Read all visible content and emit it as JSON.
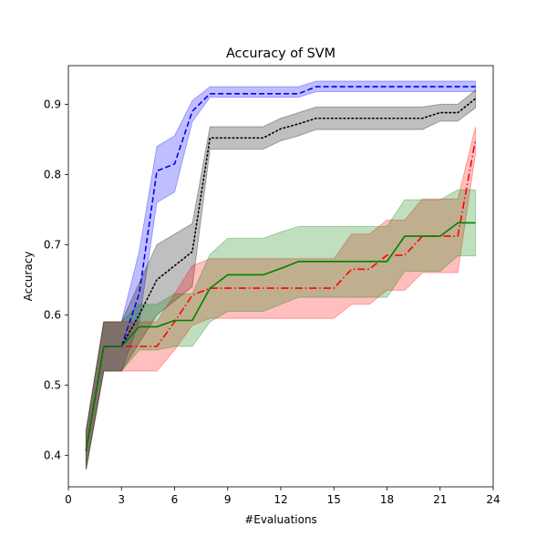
{
  "chart_data": {
    "type": "line",
    "title": "Accuracy of SVM",
    "xlabel": "#Evaluations",
    "ylabel": "Accuracy",
    "xlim": [
      0,
      24
    ],
    "ylim": [
      0.355,
      0.955
    ],
    "xticks": [
      0,
      3,
      6,
      9,
      12,
      15,
      18,
      21,
      24
    ],
    "yticks": [
      0.4,
      0.5,
      0.6,
      0.7,
      0.8,
      0.9
    ],
    "grid": false,
    "legend": false,
    "series": [
      {
        "color": "#0000ff",
        "linestyle": "dashed",
        "x": [
          1,
          2,
          3,
          4,
          5,
          6,
          7,
          8,
          9,
          10,
          11,
          12,
          13,
          14,
          15,
          16,
          17,
          18,
          19,
          20,
          21,
          22,
          23
        ],
        "y": [
          0.407,
          0.555,
          0.555,
          0.63,
          0.805,
          0.815,
          0.89,
          0.915,
          0.915,
          0.915,
          0.915,
          0.915,
          0.915,
          0.925,
          0.925,
          0.925,
          0.925,
          0.925,
          0.925,
          0.925,
          0.925,
          0.925,
          0.925
        ],
        "lower": [
          0.38,
          0.52,
          0.52,
          0.59,
          0.76,
          0.775,
          0.875,
          0.91,
          0.91,
          0.91,
          0.91,
          0.91,
          0.91,
          0.918,
          0.918,
          0.918,
          0.918,
          0.918,
          0.918,
          0.918,
          0.918,
          0.918,
          0.918
        ],
        "upper": [
          0.435,
          0.59,
          0.59,
          0.69,
          0.84,
          0.855,
          0.905,
          0.925,
          0.925,
          0.925,
          0.925,
          0.925,
          0.925,
          0.933,
          0.933,
          0.933,
          0.933,
          0.933,
          0.933,
          0.933,
          0.933,
          0.933,
          0.933
        ]
      },
      {
        "color": "#000000",
        "linestyle": "dotted",
        "x": [
          1,
          2,
          3,
          4,
          5,
          6,
          7,
          8,
          9,
          10,
          11,
          12,
          13,
          14,
          15,
          16,
          17,
          18,
          19,
          20,
          21,
          22,
          23
        ],
        "y": [
          0.407,
          0.555,
          0.555,
          0.6,
          0.65,
          0.67,
          0.69,
          0.852,
          0.852,
          0.852,
          0.852,
          0.865,
          0.872,
          0.88,
          0.88,
          0.88,
          0.88,
          0.88,
          0.88,
          0.88,
          0.888,
          0.888,
          0.908
        ],
        "lower": [
          0.38,
          0.52,
          0.52,
          0.56,
          0.6,
          0.62,
          0.64,
          0.836,
          0.836,
          0.836,
          0.836,
          0.848,
          0.855,
          0.864,
          0.864,
          0.864,
          0.864,
          0.864,
          0.864,
          0.864,
          0.876,
          0.876,
          0.895
        ],
        "upper": [
          0.435,
          0.59,
          0.59,
          0.645,
          0.7,
          0.715,
          0.73,
          0.868,
          0.868,
          0.868,
          0.868,
          0.88,
          0.888,
          0.896,
          0.896,
          0.896,
          0.896,
          0.896,
          0.896,
          0.896,
          0.9,
          0.9,
          0.92
        ]
      },
      {
        "color": "#ff0000",
        "linestyle": "dashdot",
        "x": [
          1,
          2,
          3,
          4,
          5,
          6,
          7,
          8,
          9,
          10,
          11,
          12,
          13,
          14,
          15,
          16,
          17,
          18,
          19,
          20,
          21,
          22,
          23
        ],
        "y": [
          0.407,
          0.555,
          0.555,
          0.555,
          0.555,
          0.59,
          0.628,
          0.638,
          0.638,
          0.638,
          0.638,
          0.638,
          0.638,
          0.638,
          0.638,
          0.665,
          0.665,
          0.685,
          0.685,
          0.712,
          0.712,
          0.712,
          0.85
        ],
        "lower": [
          0.38,
          0.52,
          0.52,
          0.52,
          0.52,
          0.55,
          0.585,
          0.595,
          0.595,
          0.595,
          0.595,
          0.595,
          0.595,
          0.595,
          0.595,
          0.615,
          0.615,
          0.635,
          0.635,
          0.66,
          0.66,
          0.66,
          0.83
        ],
        "upper": [
          0.435,
          0.59,
          0.59,
          0.59,
          0.59,
          0.63,
          0.67,
          0.68,
          0.68,
          0.68,
          0.68,
          0.68,
          0.68,
          0.68,
          0.68,
          0.715,
          0.715,
          0.735,
          0.735,
          0.765,
          0.765,
          0.765,
          0.868
        ]
      },
      {
        "color": "#008000",
        "linestyle": "solid",
        "x": [
          1,
          2,
          3,
          4,
          5,
          6,
          7,
          8,
          9,
          10,
          11,
          12,
          13,
          14,
          15,
          16,
          17,
          18,
          19,
          20,
          21,
          22,
          23
        ],
        "y": [
          0.407,
          0.555,
          0.555,
          0.583,
          0.583,
          0.592,
          0.592,
          0.638,
          0.657,
          0.657,
          0.657,
          0.666,
          0.676,
          0.676,
          0.676,
          0.676,
          0.676,
          0.676,
          0.712,
          0.712,
          0.712,
          0.731,
          0.731
        ],
        "lower": [
          0.38,
          0.52,
          0.52,
          0.55,
          0.55,
          0.555,
          0.555,
          0.59,
          0.605,
          0.605,
          0.605,
          0.615,
          0.625,
          0.625,
          0.625,
          0.625,
          0.625,
          0.625,
          0.662,
          0.662,
          0.662,
          0.684,
          0.684
        ],
        "upper": [
          0.435,
          0.59,
          0.59,
          0.615,
          0.615,
          0.63,
          0.63,
          0.686,
          0.709,
          0.709,
          0.709,
          0.718,
          0.726,
          0.726,
          0.726,
          0.726,
          0.726,
          0.726,
          0.764,
          0.764,
          0.764,
          0.778,
          0.778
        ]
      }
    ]
  }
}
